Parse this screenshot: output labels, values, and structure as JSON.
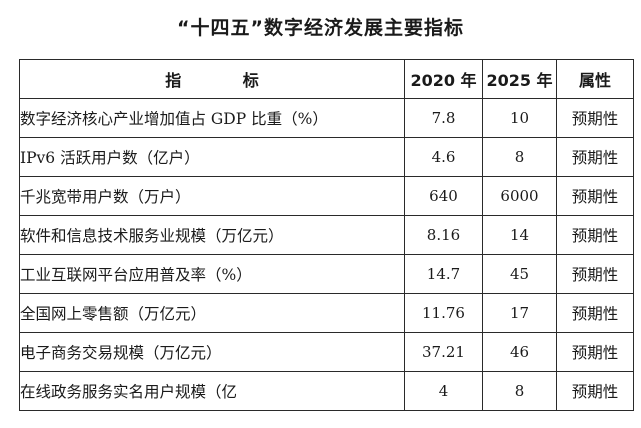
{
  "title": "“十四五”数字经济发展主要指标",
  "table": {
    "headers": {
      "indicator": "指 标",
      "y2020": "2020 年",
      "y2025": "2025 年",
      "attribute": "属性"
    },
    "rows": [
      {
        "indicator": "数字经济核心产业增加值占 GDP 比重（%）",
        "y2020": "7.8",
        "y2025": "10",
        "attribute": "预期性"
      },
      {
        "indicator": "IPv6 活跃用户数（亿户）",
        "y2020": "4.6",
        "y2025": "8",
        "attribute": "预期性"
      },
      {
        "indicator": "千兆宽带用户数（万户）",
        "y2020": "640",
        "y2025": "6000",
        "attribute": "预期性"
      },
      {
        "indicator": "软件和信息技术服务业规模（万亿元）",
        "y2020": "8.16",
        "y2025": "14",
        "attribute": "预期性"
      },
      {
        "indicator": "工业互联网平台应用普及率（%）",
        "y2020": "14.7",
        "y2025": "45",
        "attribute": "预期性"
      },
      {
        "indicator": "全国网上零售额（万亿元）",
        "y2020": "11.76",
        "y2025": "17",
        "attribute": "预期性"
      },
      {
        "indicator": "电子商务交易规模（万亿元）",
        "y2020": "37.21",
        "y2025": "46",
        "attribute": "预期性"
      },
      {
        "indicator": "在线政务服务实名用户规模（亿",
        "y2020": "4",
        "y2025": "8",
        "attribute": "预期性"
      }
    ]
  }
}
